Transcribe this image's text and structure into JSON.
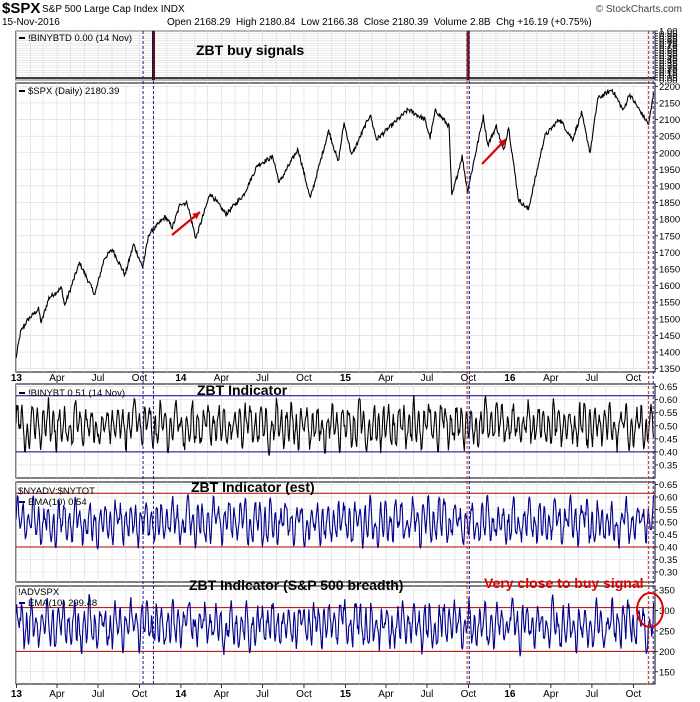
{
  "header": {
    "symbol": "$SPX",
    "name": "S&P 500 Large Cap Index INDX",
    "date": "15-Nov-2016",
    "ohlc": "Open 2168.29  High 2180.84  Low 2166.38  Close 2180.39  Volume 2.8B  Chg +16.19 (+0.75%)",
    "credit": "© StockCharts.com"
  },
  "colors": {
    "price": "#000000",
    "breadth": "#00008b",
    "threshold": "#b00000",
    "signal_line": "#1a1aa0",
    "signal_line_red": "#c02020",
    "annotation": "#e00000",
    "grid": "#d9d9d9"
  },
  "x_axis": {
    "ticks": [
      "13",
      "Apr",
      "Jul",
      "Oct",
      "14",
      "Apr",
      "Jul",
      "Oct",
      "15",
      "Apr",
      "Jul",
      "Oct",
      "16",
      "Apr",
      "Jul",
      "Oct"
    ],
    "bold_ticks": [
      "13",
      "14",
      "15",
      "16"
    ]
  },
  "chart_data": [
    {
      "type": "bar",
      "legend": "!BINYBTD 0.00 (14 Nov)",
      "annotation": "ZBT buy signals",
      "ylim": [
        0,
        1
      ],
      "y_ticks": [
        "1.00",
        "0.95",
        "0.90",
        "0.85",
        "0.80",
        "0.75",
        "0.70",
        "0.65",
        "0.60",
        "0.55",
        "0.50",
        "0.45",
        "0.40",
        "0.35",
        "0.30",
        "0.25",
        "0.20",
        "0.15",
        "0.10",
        "0.05",
        "0.00"
      ],
      "points": [
        {
          "x": "2013-11-01",
          "y": 1
        },
        {
          "x": "2015-09-30",
          "y": 1
        }
      ]
    },
    {
      "type": "line",
      "legend": "$SPX (Daily) 2180.39",
      "ylim": [
        1340,
        2210
      ],
      "y_ticks": [
        2200,
        2150,
        2100,
        2050,
        2000,
        1950,
        1900,
        1850,
        1800,
        1750,
        1700,
        1650,
        1600,
        1550,
        1500,
        1450,
        1400,
        1350
      ],
      "series": [
        {
          "points": [
            [
              "2012-12-31",
              1380
            ],
            [
              "2013-01-10",
              1460
            ],
            [
              "2013-01-25",
              1495
            ],
            [
              "2013-02-19",
              1530
            ],
            [
              "2013-02-25",
              1488
            ],
            [
              "2013-03-14",
              1563
            ],
            [
              "2013-04-11",
              1593
            ],
            [
              "2013-04-18",
              1540
            ],
            [
              "2013-05-21",
              1669
            ],
            [
              "2013-06-24",
              1573
            ],
            [
              "2013-07-15",
              1682
            ],
            [
              "2013-08-02",
              1709
            ],
            [
              "2013-08-30",
              1632
            ],
            [
              "2013-09-18",
              1725
            ],
            [
              "2013-10-08",
              1655
            ],
            [
              "2013-10-22",
              1755
            ],
            [
              "2013-11-27",
              1807
            ],
            [
              "2013-12-13",
              1775
            ],
            [
              "2013-12-31",
              1848
            ],
            [
              "2014-01-15",
              1848
            ],
            [
              "2014-02-03",
              1742
            ],
            [
              "2014-03-07",
              1878
            ],
            [
              "2014-04-11",
              1815
            ],
            [
              "2014-05-20",
              1873
            ],
            [
              "2014-06-20",
              1963
            ],
            [
              "2014-07-24",
              1988
            ],
            [
              "2014-08-07",
              1910
            ],
            [
              "2014-09-18",
              2011
            ],
            [
              "2014-10-15",
              1862
            ],
            [
              "2014-11-25",
              2067
            ],
            [
              "2014-12-16",
              1972
            ],
            [
              "2014-12-29",
              2090
            ],
            [
              "2015-01-15",
              1992
            ],
            [
              "2015-02-25",
              2115
            ],
            [
              "2015-03-11",
              2040
            ],
            [
              "2015-05-21",
              2130
            ],
            [
              "2015-06-26",
              2100
            ],
            [
              "2015-07-08",
              2046
            ],
            [
              "2015-07-20",
              2128
            ],
            [
              "2015-08-19",
              2080
            ],
            [
              "2015-08-25",
              1868
            ],
            [
              "2015-09-17",
              1990
            ],
            [
              "2015-09-29",
              1884
            ],
            [
              "2015-11-03",
              2109
            ],
            [
              "2015-11-13",
              2023
            ],
            [
              "2015-12-02",
              2080
            ],
            [
              "2015-12-18",
              2005
            ],
            [
              "2015-12-29",
              2078
            ],
            [
              "2016-01-20",
              1859
            ],
            [
              "2016-02-11",
              1829
            ],
            [
              "2016-03-18",
              2049
            ],
            [
              "2016-04-20",
              2102
            ],
            [
              "2016-05-19",
              2040
            ],
            [
              "2016-06-08",
              2119
            ],
            [
              "2016-06-27",
              2000
            ],
            [
              "2016-07-14",
              2163
            ],
            [
              "2016-08-15",
              2190
            ],
            [
              "2016-09-09",
              2127
            ],
            [
              "2016-09-22",
              2177
            ],
            [
              "2016-10-13",
              2132
            ],
            [
              "2016-11-04",
              2085
            ],
            [
              "2016-11-15",
              2180
            ]
          ]
        }
      ]
    },
    {
      "type": "line",
      "legend": "!BINYBT 0.51 (14 Nov)",
      "annotation": "ZBT Indicator",
      "ylim": [
        0.3,
        0.66
      ],
      "thresholds": [
        0.615,
        0.4
      ],
      "y_ticks": [
        "0.65",
        "0.60",
        "0.55",
        "0.50",
        "0.45",
        "0.40",
        "0.35"
      ],
      "series": [
        {
          "points": "zbt"
        }
      ]
    },
    {
      "type": "line",
      "legend": "$NYADV:$NYTOT",
      "legend2": "EMA(10) 0.54",
      "annotation": "ZBT Indicator (est)",
      "ylim": [
        0.26,
        0.66
      ],
      "thresholds": [
        0.615,
        0.4
      ],
      "y_ticks": [
        "0.65",
        "0.60",
        "0.55",
        "0.50",
        "0.45",
        "0.40",
        "0.35",
        "0.30"
      ],
      "series": [
        {
          "points": "zbt_est"
        }
      ]
    },
    {
      "type": "line",
      "legend": "!ADVSPX",
      "legend2": "EMA(10) 299.48",
      "annotation": "ZBT Indicator (S&P 500 breadth)",
      "annotation2": "Very close to buy signal",
      "ylim": [
        120,
        360
      ],
      "thresholds": [
        307,
        200
      ],
      "y_ticks": [
        "350",
        "300",
        "250",
        "200",
        "150"
      ],
      "series": [
        {
          "points": "breadth"
        }
      ]
    }
  ]
}
